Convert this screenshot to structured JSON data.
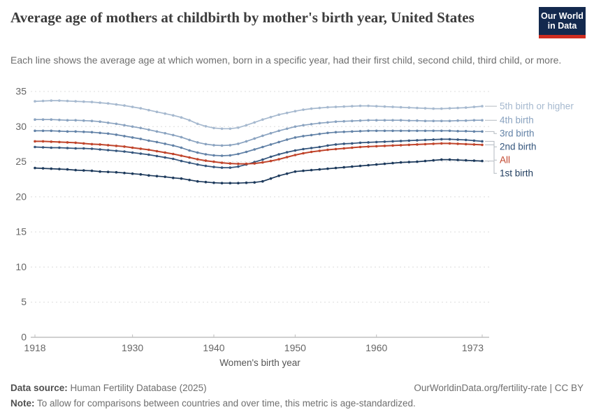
{
  "header": {
    "title": "Average age of mothers at childbirth by mother's birth year, United States",
    "subtitle": "Each line shows the average age at which women, born in a specific year, had their first child, second child, third child, or more.",
    "logo": {
      "line1": "Our World",
      "line2": "in Data",
      "bg": "#13294e",
      "accent": "#cf2d20"
    }
  },
  "footer": {
    "source_label": "Data source:",
    "source_text": " Human Fertility Database (2025)",
    "link_text": "OurWorldinData.org/fertility-rate | CC BY",
    "note_label": "Note:",
    "note_text": " To allow for comparisons between countries and over time, this metric is age-standardized."
  },
  "chart_data": {
    "type": "line",
    "title": "Average age of mothers at childbirth by mother's birth year, United States",
    "xlabel": "Women's birth year",
    "ylabel": "",
    "xlim": [
      1918,
      1973
    ],
    "ylim": [
      0,
      35
    ],
    "x_ticks": [
      1918,
      1930,
      1940,
      1950,
      1960,
      1973
    ],
    "y_ticks": [
      0,
      5,
      10,
      15,
      20,
      25,
      30,
      35
    ],
    "grid": "horizontal-dashed",
    "legend_position": "right-of-lines",
    "markers": "point-per-year",
    "x_start": 1918,
    "x_step": 1,
    "series": [
      {
        "name": "5th birth or higher",
        "color": "#a6b9cf",
        "values": [
          33.6,
          33.65,
          33.7,
          33.7,
          33.65,
          33.6,
          33.55,
          33.5,
          33.4,
          33.3,
          33.15,
          33.0,
          32.8,
          32.6,
          32.35,
          32.1,
          31.85,
          31.6,
          31.3,
          30.9,
          30.4,
          30.05,
          29.8,
          29.7,
          29.7,
          29.85,
          30.2,
          30.6,
          31.0,
          31.35,
          31.7,
          31.95,
          32.2,
          32.4,
          32.55,
          32.65,
          32.75,
          32.8,
          32.85,
          32.9,
          32.95,
          32.95,
          32.9,
          32.85,
          32.8,
          32.75,
          32.7,
          32.65,
          32.6,
          32.55,
          32.55,
          32.6,
          32.65,
          32.7,
          32.8,
          32.9
        ]
      },
      {
        "name": "4th birth",
        "color": "#8aa3c0",
        "values": [
          31.0,
          31.0,
          31.0,
          30.95,
          30.9,
          30.9,
          30.85,
          30.8,
          30.7,
          30.55,
          30.4,
          30.2,
          30.0,
          29.8,
          29.55,
          29.3,
          29.05,
          28.8,
          28.5,
          28.1,
          27.75,
          27.5,
          27.35,
          27.3,
          27.35,
          27.55,
          27.9,
          28.3,
          28.7,
          29.05,
          29.4,
          29.7,
          30.0,
          30.2,
          30.35,
          30.5,
          30.6,
          30.7,
          30.75,
          30.8,
          30.85,
          30.9,
          30.9,
          30.9,
          30.9,
          30.9,
          30.85,
          30.85,
          30.8,
          30.8,
          30.8,
          30.8,
          30.85,
          30.85,
          30.9,
          30.9
        ]
      },
      {
        "name": "3rd birth",
        "color": "#6282a7",
        "values": [
          29.4,
          29.4,
          29.4,
          29.35,
          29.3,
          29.3,
          29.25,
          29.2,
          29.1,
          29.0,
          28.85,
          28.65,
          28.45,
          28.25,
          28.0,
          27.8,
          27.55,
          27.3,
          27.0,
          26.6,
          26.3,
          26.05,
          25.9,
          25.85,
          25.9,
          26.1,
          26.4,
          26.75,
          27.1,
          27.45,
          27.8,
          28.15,
          28.45,
          28.65,
          28.8,
          28.95,
          29.1,
          29.2,
          29.25,
          29.3,
          29.35,
          29.4,
          29.4,
          29.4,
          29.4,
          29.4,
          29.4,
          29.4,
          29.4,
          29.4,
          29.4,
          29.4,
          29.35,
          29.35,
          29.3,
          29.3
        ]
      },
      {
        "name": "2nd birth",
        "color": "#35567d",
        "values": [
          27.1,
          27.05,
          27.0,
          27.0,
          26.95,
          26.9,
          26.9,
          26.85,
          26.75,
          26.65,
          26.55,
          26.45,
          26.3,
          26.15,
          26.0,
          25.8,
          25.6,
          25.4,
          25.1,
          24.85,
          24.6,
          24.4,
          24.25,
          24.15,
          24.15,
          24.3,
          24.6,
          24.95,
          25.3,
          25.7,
          26.05,
          26.35,
          26.6,
          26.8,
          26.95,
          27.1,
          27.3,
          27.45,
          27.55,
          27.6,
          27.7,
          27.75,
          27.8,
          27.85,
          27.9,
          27.95,
          28.0,
          28.05,
          28.1,
          28.15,
          28.2,
          28.2,
          28.15,
          28.1,
          28.0,
          27.9
        ]
      },
      {
        "name": "All",
        "color": "#c0442b",
        "values": [
          27.9,
          27.9,
          27.85,
          27.8,
          27.75,
          27.7,
          27.6,
          27.5,
          27.45,
          27.35,
          27.25,
          27.15,
          27.0,
          26.85,
          26.7,
          26.5,
          26.3,
          26.1,
          25.85,
          25.6,
          25.35,
          25.15,
          25.0,
          24.85,
          24.75,
          24.7,
          24.7,
          24.75,
          24.9,
          25.1,
          25.35,
          25.65,
          25.95,
          26.2,
          26.4,
          26.55,
          26.7,
          26.8,
          26.9,
          27.0,
          27.1,
          27.15,
          27.2,
          27.25,
          27.3,
          27.35,
          27.4,
          27.45,
          27.5,
          27.55,
          27.6,
          27.6,
          27.55,
          27.5,
          27.45,
          27.4
        ]
      },
      {
        "name": "1st birth",
        "color": "#1d3a5c",
        "values": [
          24.1,
          24.05,
          24.0,
          23.95,
          23.9,
          23.8,
          23.75,
          23.7,
          23.6,
          23.55,
          23.5,
          23.4,
          23.3,
          23.2,
          23.05,
          22.95,
          22.85,
          22.7,
          22.6,
          22.4,
          22.2,
          22.1,
          22.0,
          21.95,
          21.95,
          21.95,
          22.0,
          22.05,
          22.2,
          22.6,
          23.0,
          23.3,
          23.6,
          23.7,
          23.8,
          23.9,
          24.0,
          24.1,
          24.2,
          24.3,
          24.4,
          24.5,
          24.6,
          24.7,
          24.8,
          24.9,
          24.95,
          25.0,
          25.1,
          25.2,
          25.3,
          25.3,
          25.25,
          25.2,
          25.15,
          25.1
        ]
      }
    ]
  }
}
